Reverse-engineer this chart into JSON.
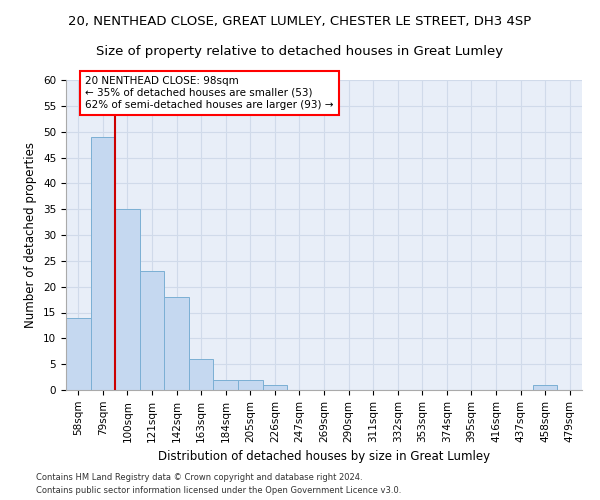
{
  "title1": "20, NENTHEAD CLOSE, GREAT LUMLEY, CHESTER LE STREET, DH3 4SP",
  "title2": "Size of property relative to detached houses in Great Lumley",
  "xlabel": "Distribution of detached houses by size in Great Lumley",
  "ylabel": "Number of detached properties",
  "bar_labels": [
    "58sqm",
    "79sqm",
    "100sqm",
    "121sqm",
    "142sqm",
    "163sqm",
    "184sqm",
    "205sqm",
    "226sqm",
    "247sqm",
    "269sqm",
    "290sqm",
    "311sqm",
    "332sqm",
    "353sqm",
    "374sqm",
    "395sqm",
    "416sqm",
    "437sqm",
    "458sqm",
    "479sqm"
  ],
  "bar_values": [
    14,
    49,
    35,
    23,
    18,
    6,
    2,
    2,
    1,
    0,
    0,
    0,
    0,
    0,
    0,
    0,
    0,
    0,
    0,
    1,
    0
  ],
  "bar_color": "#c5d8f0",
  "bar_edge_color": "#7bafd4",
  "grid_color": "#d0daea",
  "background_color": "#e8eef8",
  "annotation_box_text": "20 NENTHEAD CLOSE: 98sqm\n← 35% of detached houses are smaller (53)\n62% of semi-detached houses are larger (93) →",
  "vline_x": 1.5,
  "vline_color": "#cc0000",
  "ylim": [
    0,
    60
  ],
  "yticks": [
    0,
    5,
    10,
    15,
    20,
    25,
    30,
    35,
    40,
    45,
    50,
    55,
    60
  ],
  "footnote1": "Contains HM Land Registry data © Crown copyright and database right 2024.",
  "footnote2": "Contains public sector information licensed under the Open Government Licence v3.0.",
  "title1_fontsize": 9.5,
  "title2_fontsize": 9.5,
  "axis_label_fontsize": 8.5,
  "tick_fontsize": 7.5
}
